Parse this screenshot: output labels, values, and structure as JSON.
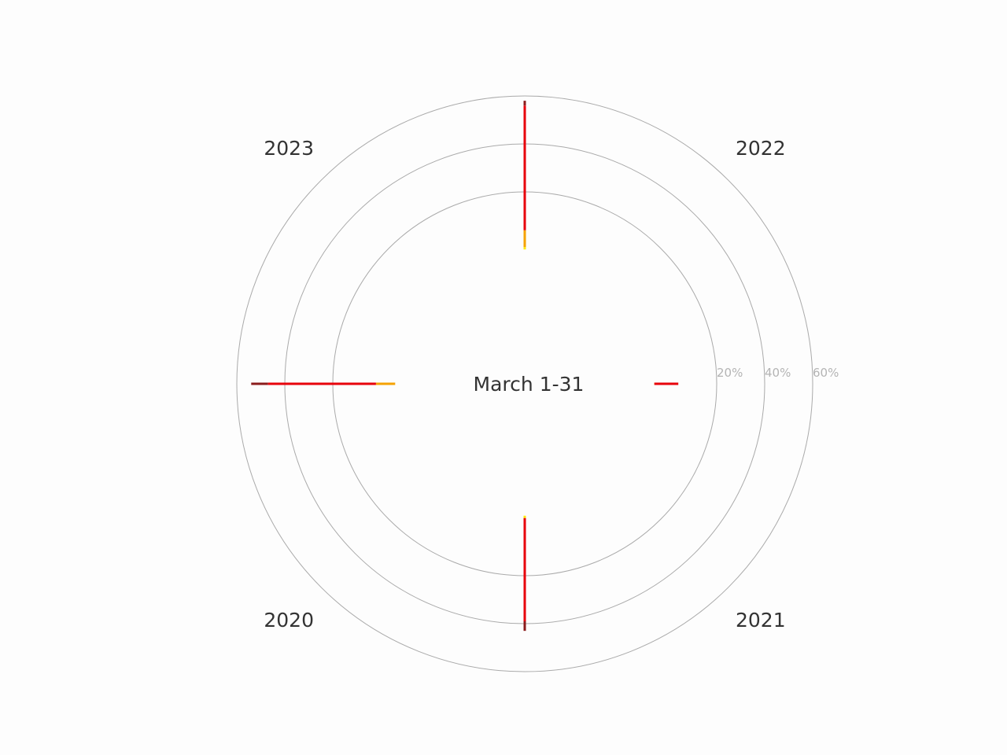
{
  "chart_data": {
    "type": "radial-bar",
    "center_label": "March 1-31",
    "radial_axis": {
      "ticks": [
        {
          "value": 20,
          "label": "20%"
        },
        {
          "value": 40,
          "label": "40%"
        },
        {
          "value": 60,
          "label": "60%"
        }
      ],
      "grid": true
    },
    "categories": [
      "2022",
      "2021",
      "2020",
      "2023"
    ],
    "series": [
      {
        "color": "#ffeb00",
        "segments": [
          [
            -4,
            -3
          ],
          [
            -6,
            -5
          ],
          [
            -5,
            -4
          ],
          [
            -6,
            -6
          ]
        ]
      },
      {
        "color": "#f5a200",
        "segments": [
          [
            -3,
            4
          ],
          [
            -6,
            -6
          ],
          [
            -4,
            -4
          ],
          [
            -6,
            2
          ]
        ]
      },
      {
        "color": "#e8000b",
        "segments": [
          [
            4,
            56
          ],
          [
            -6,
            4
          ],
          [
            -4,
            39
          ],
          [
            2,
            47
          ]
        ]
      },
      {
        "color": "#8b1c1c",
        "segments": [
          [
            56,
            58
          ],
          [
            4,
            4
          ],
          [
            39,
            43
          ],
          [
            47,
            54
          ]
        ]
      }
    ]
  }
}
